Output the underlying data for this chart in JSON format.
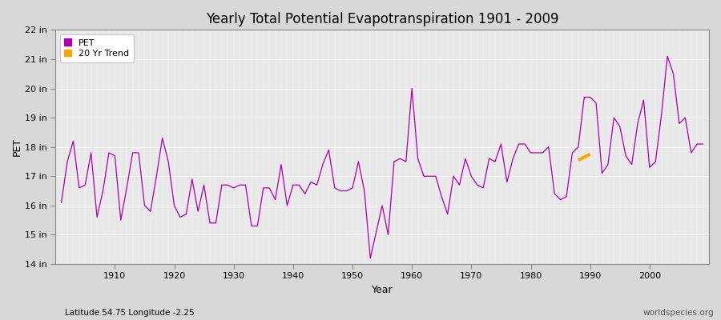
{
  "title": "Yearly Total Potential Evapotranspiration 1901 - 2009",
  "xlabel": "Year",
  "ylabel": "PET",
  "bottom_left": "Latitude 54.75 Longitude -2.25",
  "bottom_right": "worldspecies.org",
  "pet_color": "#aa00aa",
  "trend_color": "#FFA500",
  "fig_bg_color": "#d8d8d8",
  "plot_bg_color": "#e8e8e8",
  "grid_color": "#ffffff",
  "ylim": [
    14,
    22
  ],
  "yticks": [
    14,
    15,
    16,
    17,
    18,
    19,
    20,
    21,
    22
  ],
  "ytick_labels": [
    "14 in",
    "15 in",
    "16 in",
    "17 in",
    "18 in",
    "19 in",
    "20 in",
    "21 in",
    "22 in"
  ],
  "xlim": [
    1900,
    2010
  ],
  "xticks": [
    1910,
    1920,
    1930,
    1940,
    1950,
    1960,
    1970,
    1980,
    1990,
    2000
  ],
  "years": [
    1901,
    1902,
    1903,
    1904,
    1905,
    1906,
    1907,
    1908,
    1909,
    1910,
    1911,
    1912,
    1913,
    1914,
    1915,
    1916,
    1917,
    1918,
    1919,
    1920,
    1921,
    1922,
    1923,
    1924,
    1925,
    1926,
    1927,
    1928,
    1929,
    1930,
    1931,
    1932,
    1933,
    1934,
    1935,
    1936,
    1937,
    1938,
    1939,
    1940,
    1941,
    1942,
    1943,
    1944,
    1945,
    1946,
    1947,
    1948,
    1949,
    1950,
    1951,
    1952,
    1953,
    1954,
    1955,
    1956,
    1957,
    1958,
    1959,
    1960,
    1961,
    1962,
    1963,
    1964,
    1965,
    1966,
    1967,
    1968,
    1969,
    1970,
    1971,
    1972,
    1973,
    1974,
    1975,
    1976,
    1977,
    1978,
    1979,
    1980,
    1981,
    1982,
    1983,
    1984,
    1985,
    1986,
    1987,
    1988,
    1989,
    1990,
    1991,
    1992,
    1993,
    1994,
    1995,
    1996,
    1997,
    1998,
    1999,
    2000,
    2001,
    2002,
    2003,
    2004,
    2005,
    2006,
    2007,
    2008,
    2009
  ],
  "pet_values": [
    16.1,
    17.5,
    18.2,
    16.6,
    16.7,
    17.8,
    15.6,
    16.5,
    17.8,
    17.7,
    15.5,
    16.6,
    17.8,
    17.8,
    16.0,
    15.8,
    17.0,
    18.3,
    17.5,
    16.0,
    15.6,
    15.7,
    16.9,
    15.8,
    16.7,
    15.4,
    15.4,
    16.7,
    16.7,
    16.6,
    16.7,
    16.7,
    15.3,
    15.3,
    16.6,
    16.6,
    16.2,
    17.4,
    16.0,
    16.7,
    16.7,
    16.4,
    16.8,
    16.7,
    17.4,
    17.9,
    16.6,
    16.5,
    16.5,
    16.6,
    17.5,
    16.5,
    14.2,
    15.1,
    16.0,
    15.0,
    17.5,
    17.6,
    17.5,
    20.0,
    17.6,
    17.0,
    17.0,
    17.0,
    16.3,
    15.7,
    17.0,
    16.7,
    17.6,
    17.0,
    16.7,
    16.6,
    17.6,
    17.5,
    18.1,
    16.8,
    17.6,
    18.1,
    18.1,
    17.8,
    17.8,
    17.8,
    18.0,
    16.4,
    16.2,
    16.3,
    17.8,
    18.0,
    19.7,
    19.7,
    19.5,
    17.1,
    17.4,
    19.0,
    18.7,
    17.7,
    17.4,
    18.8,
    19.6,
    17.3,
    17.5,
    19.1,
    21.1,
    20.5,
    18.8,
    19.0,
    17.8,
    18.1,
    18.1
  ],
  "trend_x": [
    1988.0,
    1990.0
  ],
  "trend_y": [
    17.55,
    17.75
  ]
}
